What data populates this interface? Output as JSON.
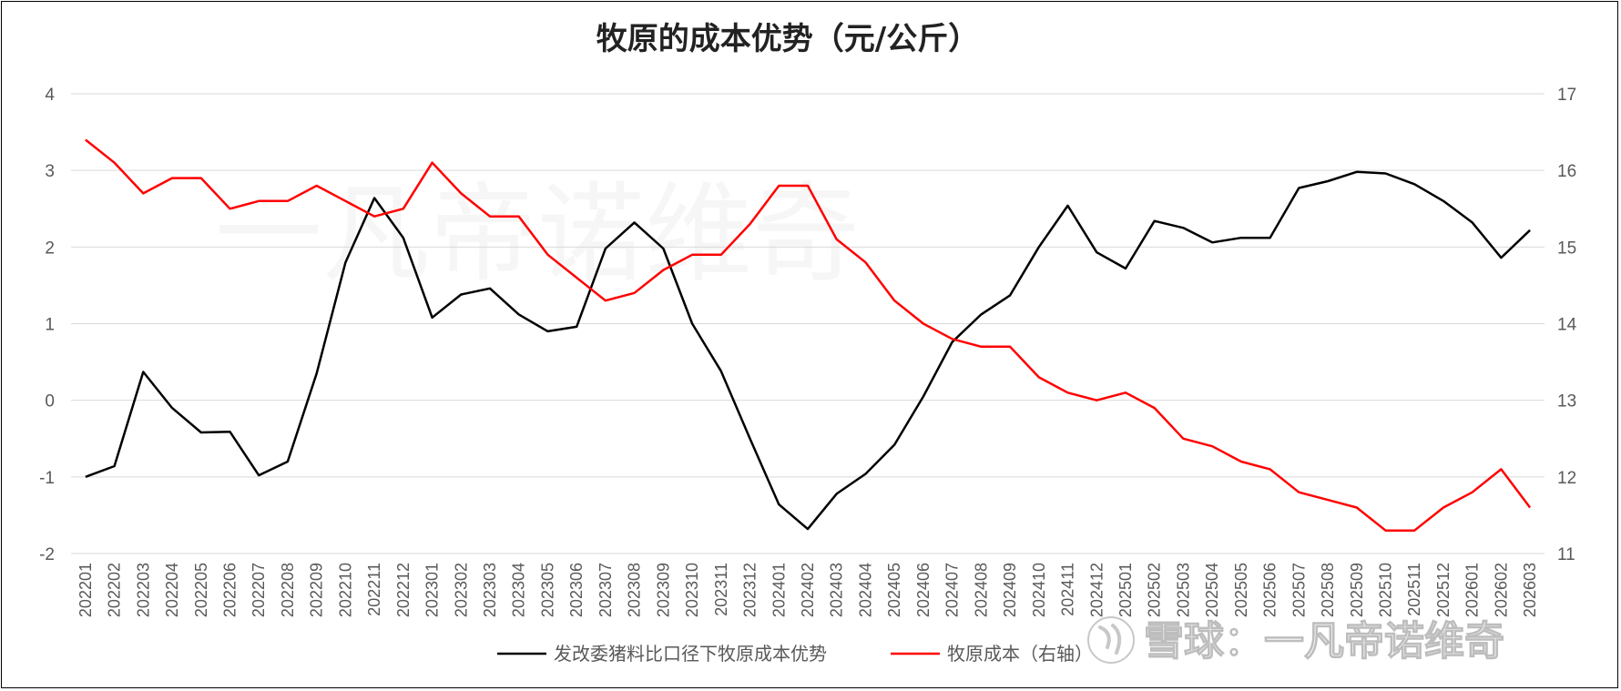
{
  "chart_data": {
    "type": "line",
    "title": "牧原的成本优势（元/公斤）",
    "x": [
      "202201",
      "202202",
      "202203",
      "202204",
      "202205",
      "202206",
      "202207",
      "202208",
      "202209",
      "202210",
      "202211",
      "202212",
      "202301",
      "202302",
      "202303",
      "202304",
      "202305",
      "202306",
      "202307",
      "202308",
      "202309",
      "202310",
      "202311",
      "202312",
      "202401",
      "202402",
      "202403",
      "202404",
      "202405",
      "202406",
      "202407",
      "202408",
      "202409",
      "202410",
      "202411",
      "202412",
      "202501",
      "202502",
      "202503",
      "202504",
      "202505",
      "202506",
      "202507",
      "202508",
      "202509",
      "202510",
      "202511",
      "202512",
      "202601",
      "202602",
      "202603"
    ],
    "left_axis": {
      "range": [
        -2,
        4
      ],
      "ticks": [
        "-2",
        "-1",
        "0",
        "1",
        "2",
        "3",
        "4"
      ]
    },
    "right_axis": {
      "range": [
        11,
        17
      ],
      "ticks": [
        "11",
        "12",
        "13",
        "14",
        "15",
        "16",
        "17"
      ]
    },
    "grid": true,
    "legend_position": "bottom",
    "series": [
      {
        "name": "发改委猪料比口径下牧原成本优势",
        "axis": "left",
        "color": "#000000",
        "values": [
          -1.0,
          -0.86,
          0.37,
          -0.1,
          -0.42,
          -0.41,
          -0.98,
          -0.8,
          0.35,
          1.8,
          2.64,
          2.12,
          1.08,
          1.38,
          1.46,
          1.12,
          0.9,
          0.96,
          1.98,
          2.32,
          1.98,
          1.0,
          0.38,
          -0.5,
          -1.36,
          -1.68,
          -1.22,
          -0.96,
          -0.58,
          0.05,
          0.76,
          1.12,
          1.37,
          2.0,
          2.54,
          1.93,
          1.72,
          2.34,
          2.25,
          2.06,
          2.12,
          2.12,
          2.77,
          2.86,
          2.98,
          2.96,
          2.82,
          2.6,
          2.32,
          1.86,
          2.22
        ]
      },
      {
        "name": "牧原成本（右轴）",
        "axis": "right",
        "color": "#ff0000",
        "values": [
          16.4,
          16.1,
          15.7,
          15.9,
          15.9,
          15.5,
          15.6,
          15.6,
          15.8,
          15.6,
          15.4,
          15.5,
          16.1,
          15.7,
          15.4,
          15.4,
          14.9,
          14.6,
          14.3,
          14.4,
          14.7,
          14.9,
          14.9,
          15.3,
          15.8,
          15.8,
          15.1,
          14.8,
          14.3,
          14.0,
          13.8,
          13.7,
          13.7,
          13.3,
          13.1,
          13.0,
          13.1,
          12.9,
          12.5,
          12.4,
          12.2,
          12.1,
          11.8,
          11.7,
          11.6,
          11.3,
          11.3,
          11.6,
          11.8,
          12.1,
          11.6
        ]
      }
    ]
  },
  "watermark": "一凡帝诺维奇",
  "brand": {
    "text": "雪球：一凡帝诺维奇",
    "icon": "snowball-logo-icon"
  }
}
